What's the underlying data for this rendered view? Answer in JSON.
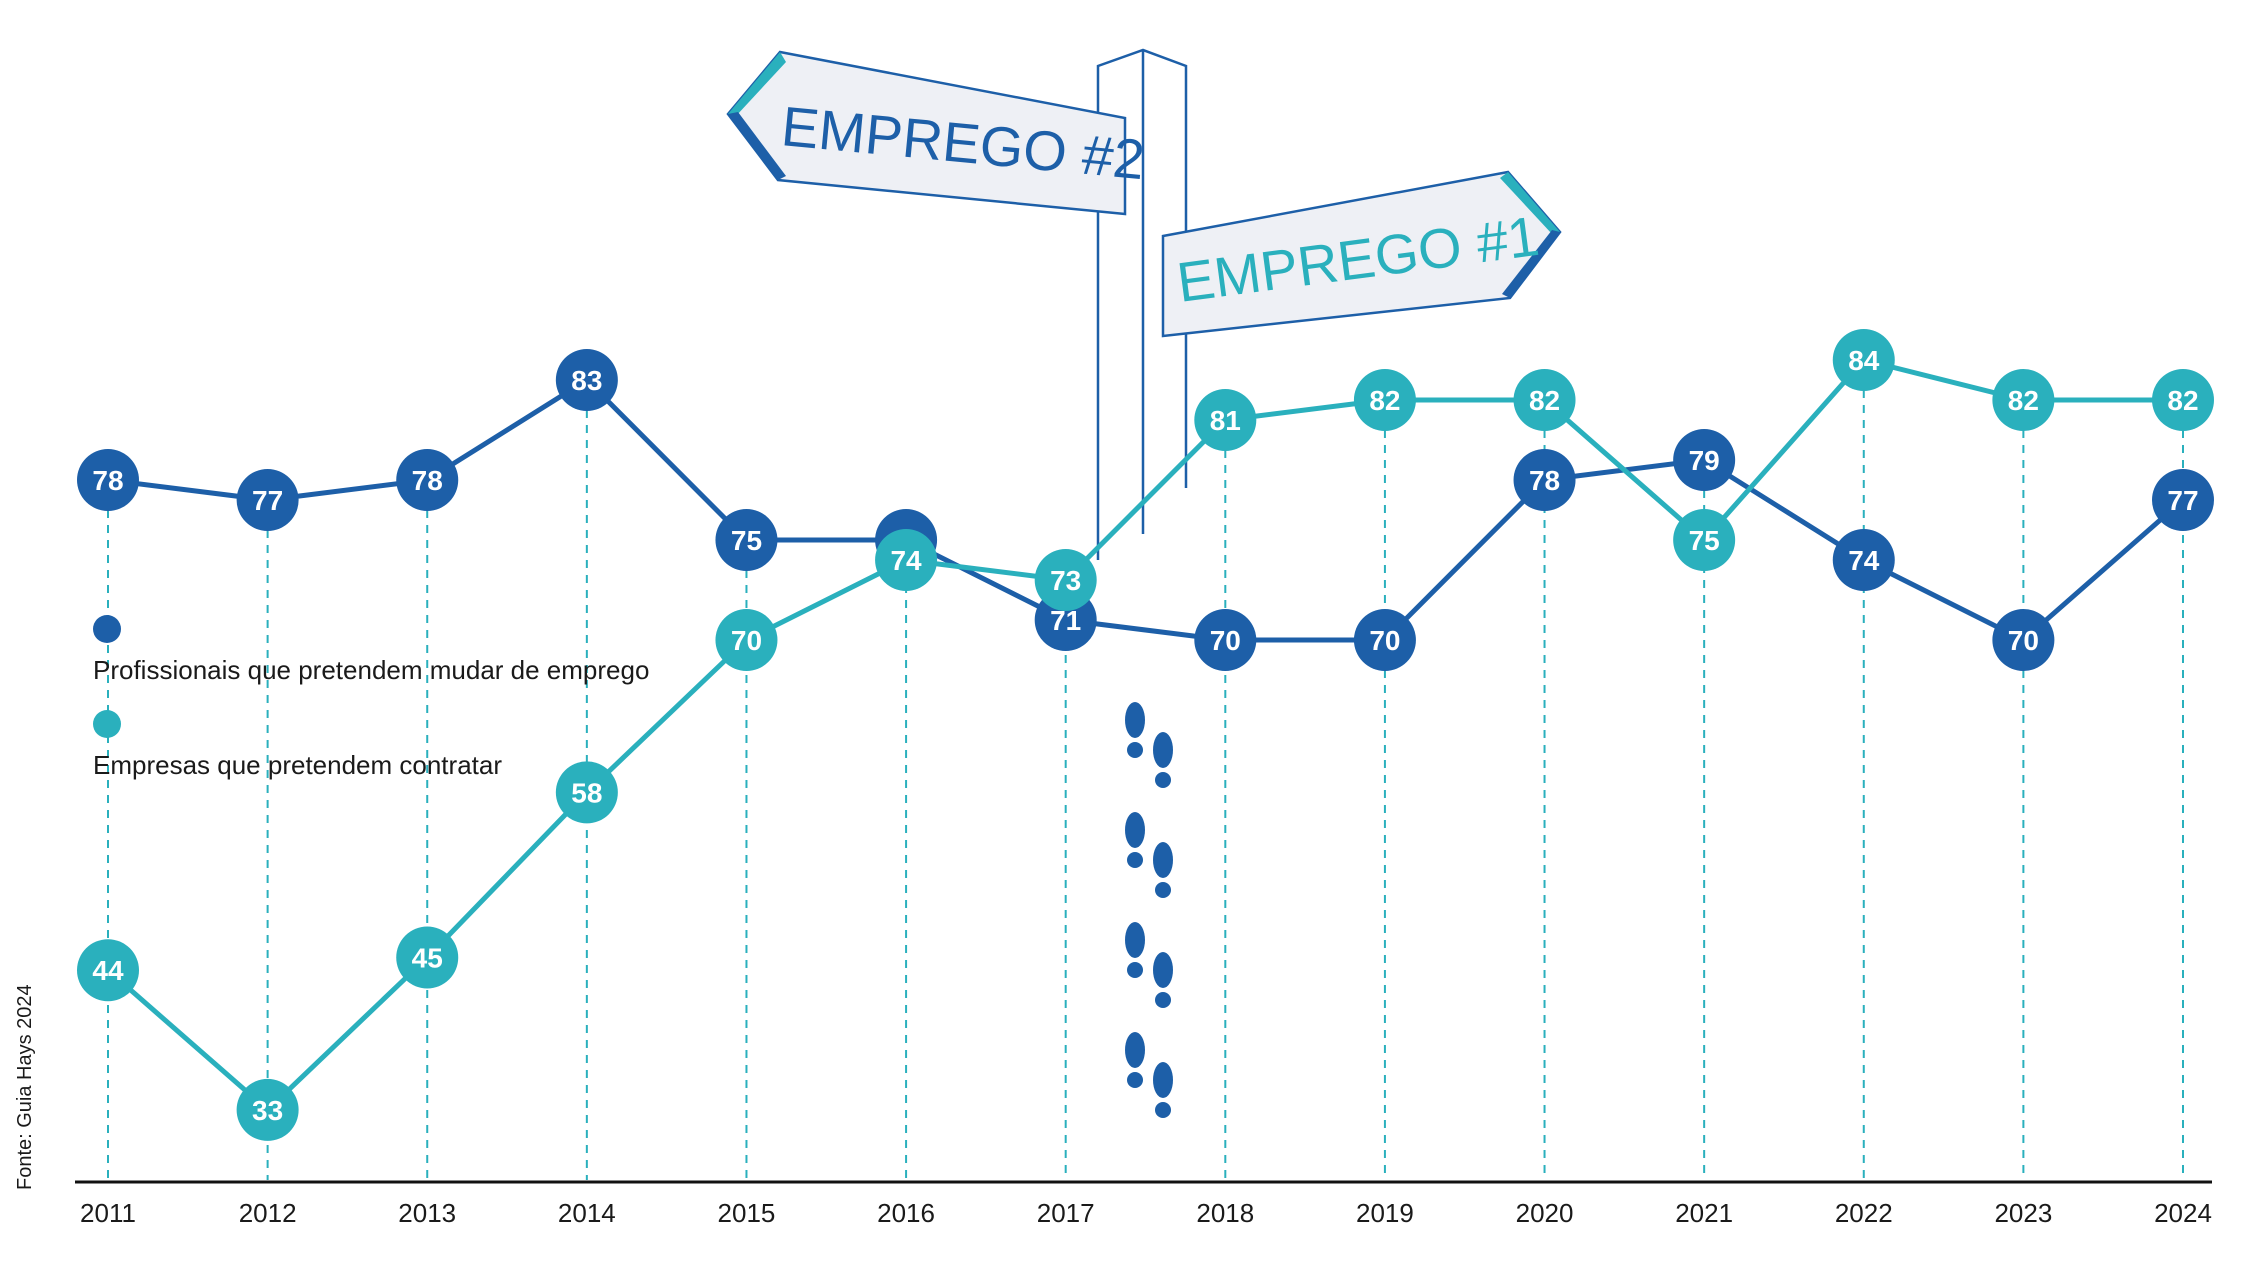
{
  "chart_data": {
    "type": "line",
    "x": [
      2011,
      2012,
      2013,
      2014,
      2015,
      2016,
      2017,
      2018,
      2019,
      2020,
      2021,
      2022,
      2023,
      2024
    ],
    "tick_labels": [
      "2011",
      "2012",
      "2013",
      "2014",
      "2015",
      "2016",
      "2017",
      "2018",
      "2019",
      "2020",
      "2021",
      "2022",
      "2023",
      "2024"
    ],
    "series": [
      {
        "name": "Profissionais que pretendem mudar de emprego",
        "color": "#1d5fa8",
        "values": [
          78,
          77,
          78,
          83,
          75,
          75,
          71,
          70,
          70,
          78,
          79,
          74,
          70,
          77
        ],
        "labels": [
          "78",
          "77",
          "78",
          "83",
          "75",
          "",
          "71",
          "70",
          "70",
          "78",
          "79",
          "74",
          "70",
          "77"
        ]
      },
      {
        "name": "Empresas que pretendem contratar",
        "color": "#2ab0bd",
        "values": [
          44,
          33,
          45,
          58,
          70,
          74,
          73,
          81,
          82,
          82,
          75,
          84,
          82,
          82
        ],
        "labels": [
          "44",
          "33",
          "45",
          "58",
          "70",
          "74",
          "73",
          "81",
          "82",
          "82",
          "75",
          "84",
          "82",
          "82"
        ]
      }
    ],
    "title": "",
    "xlabel": "",
    "ylabel": "",
    "grid": "dashed vertical drop lines",
    "legend": "left"
  },
  "signpost": {
    "sign_left": "EMPREGO #2",
    "sign_right": "EMPREGO #1",
    "footprints_icon": "footprints-icon"
  },
  "source": "Fonte: Guia Hays 2024",
  "colors": {
    "dark_blue": "#1d5fa8",
    "teal": "#2ab0bd",
    "sign_fill": "#eef0f5"
  }
}
